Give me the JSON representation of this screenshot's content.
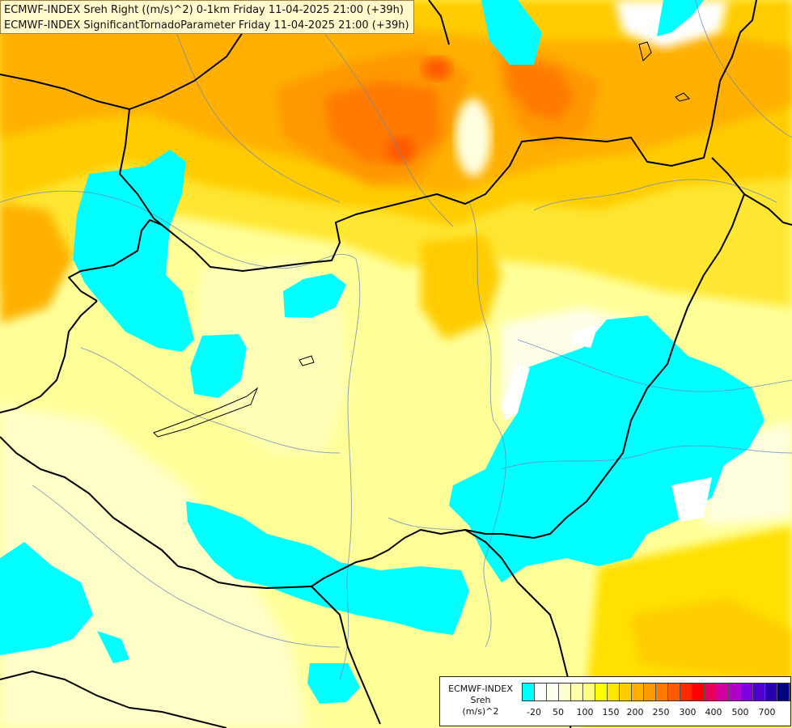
{
  "header": {
    "line1": "ECMWF-INDEX Sreh Right ((m/s)^2) 0-1km Friday 11-04-2025 21:00 (+39h)",
    "line2": "ECMWF-INDEX SignificantTornadoParameter Friday 11-04-2025 21:00 (+39h)"
  },
  "legend": {
    "model": "ECMWF-INDEX",
    "field": "Sreh",
    "unit": "(m/s)^2",
    "colors": [
      "#00ffff",
      "#ffffff",
      "#fffff0",
      "#ffffd0",
      "#ffffaa",
      "#ffff80",
      "#ffff00",
      "#ffe600",
      "#ffcc00",
      "#ffb000",
      "#ff9900",
      "#ff7a00",
      "#ff5a00",
      "#ff2a00",
      "#ff0000",
      "#e8005a",
      "#d000a0",
      "#b000c8",
      "#8000e0",
      "#5000d0",
      "#2a00b0",
      "#000080"
    ],
    "ticks": [
      "-20",
      "50",
      "100",
      "150",
      "200",
      "250",
      "300",
      "400",
      "500",
      "700"
    ]
  }
}
